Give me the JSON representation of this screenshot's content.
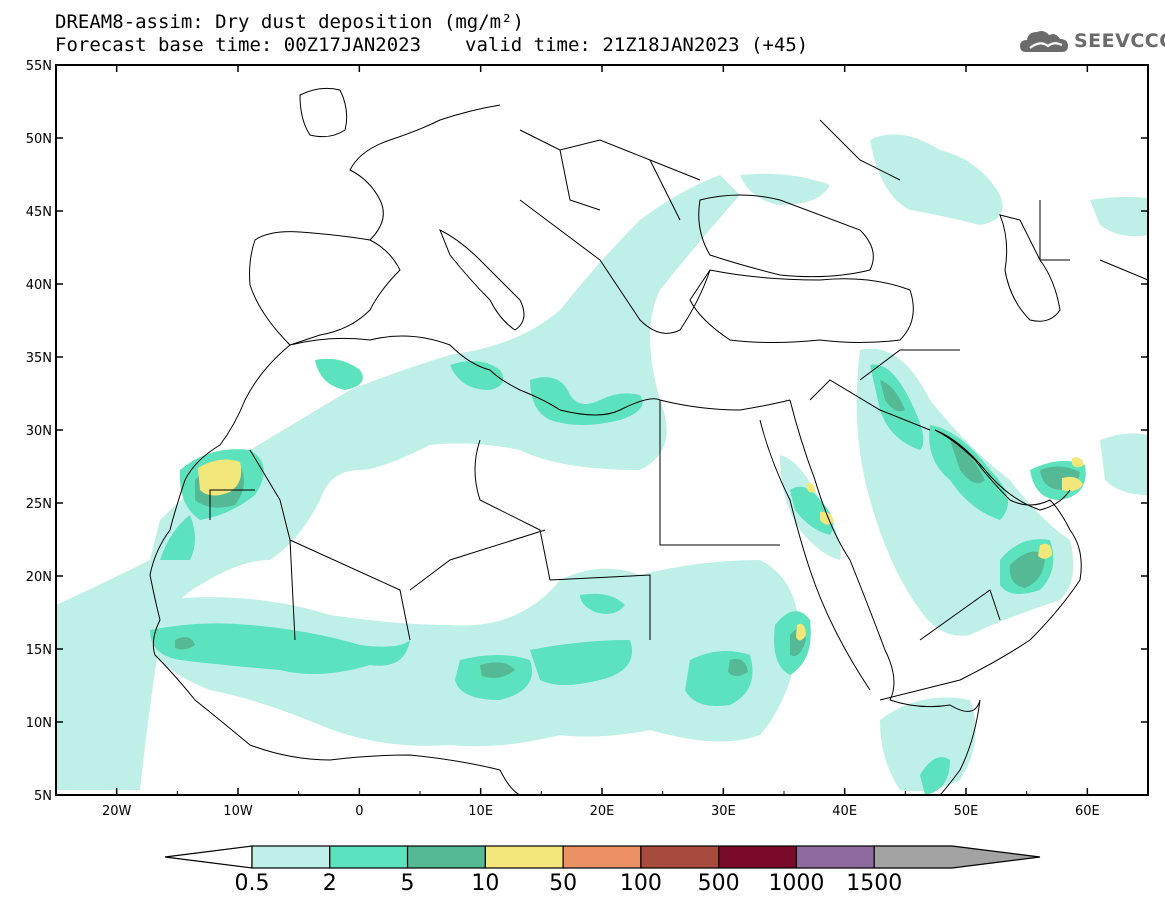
{
  "title": {
    "line1": "DREAM8-assim: Dry dust deposition (mg/m²)",
    "base": "Forecast base time: 00Z17JAN2023",
    "valid": "valid time: 21Z18JAN2023 (+45)"
  },
  "logo": {
    "text": "SEEVCCC",
    "icon": "cloud-icon"
  },
  "map": {
    "lat_labels": [
      "55N",
      "50N",
      "45N",
      "40N",
      "35N",
      "30N",
      "25N",
      "20N",
      "15N",
      "10N",
      "5N"
    ],
    "lon_labels": [
      "20W",
      "10W",
      "0",
      "10E",
      "20E",
      "30E",
      "40E",
      "50E",
      "60E"
    ],
    "lon_range": [
      -25,
      65
    ],
    "lat_range": [
      5,
      55
    ]
  },
  "legend": {
    "labels": [
      "0.5",
      "2",
      "5",
      "10",
      "50",
      "100",
      "500",
      "1000",
      "1500"
    ],
    "colors": [
      "#bff0e8",
      "#5ce2bc",
      "#55b995",
      "#f3e67a",
      "#ec9165",
      "#a84b3e",
      "#7a0a2a",
      "#8f6aa0",
      "#a3a3a3"
    ]
  }
}
